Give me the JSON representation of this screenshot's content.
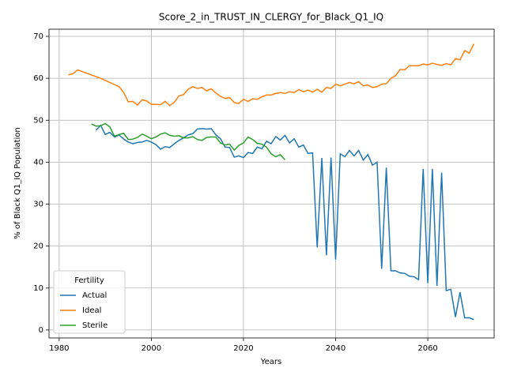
{
  "chart_data": {
    "type": "line",
    "title": "Score_2_in_TRUST_IN_CLERGY_for_Black_Q1_IQ",
    "xlabel": "Years",
    "ylabel": "% of Black Q1_IQ Population",
    "legend_title": "Fertility",
    "legend_loc": "lower left",
    "grid": true,
    "xlim": [
      1977.8,
      2074.4
    ],
    "ylim": [
      -1.9,
      71.7
    ],
    "xticks": [
      1980,
      2000,
      2020,
      2040,
      2060
    ],
    "yticks": [
      0,
      10,
      20,
      30,
      40,
      50,
      60,
      70
    ],
    "x": [
      1982,
      1983,
      1984,
      1985,
      1986,
      1987,
      1988,
      1989,
      1990,
      1991,
      1992,
      1993,
      1994,
      1995,
      1996,
      1997,
      1998,
      1999,
      2000,
      2001,
      2002,
      2003,
      2004,
      2005,
      2006,
      2007,
      2008,
      2009,
      2010,
      2011,
      2012,
      2013,
      2014,
      2015,
      2016,
      2017,
      2018,
      2019,
      2020,
      2021,
      2022,
      2023,
      2024,
      2025,
      2026,
      2027,
      2028,
      2029,
      2030,
      2031,
      2032,
      2033,
      2034,
      2035,
      2036,
      2037,
      2038,
      2039,
      2040,
      2041,
      2042,
      2043,
      2044,
      2045,
      2046,
      2047,
      2048,
      2049,
      2050,
      2051,
      2052,
      2053,
      2054,
      2055,
      2056,
      2057,
      2058,
      2059,
      2060,
      2061,
      2062,
      2063,
      2064,
      2065,
      2066,
      2067,
      2068,
      2069,
      2070
    ],
    "series": [
      {
        "name": "Actual",
        "color": "#1f77b4",
        "values": [
          null,
          null,
          null,
          null,
          null,
          null,
          47.6,
          48.8,
          46.6,
          47.1,
          46,
          46.5,
          45.5,
          44.8,
          44.4,
          44.7,
          44.8,
          45.2,
          44.8,
          44.2,
          43.1,
          43.7,
          43.5,
          44.4,
          45.2,
          45.8,
          46.5,
          46.8,
          47.9,
          48,
          47.9,
          48,
          46.5,
          45.6,
          43.6,
          43.5,
          41.2,
          41.5,
          41.1,
          42.3,
          42.1,
          43.6,
          43.2,
          45,
          44.4,
          46.1,
          45.3,
          46.4,
          44.6,
          45.6,
          43.6,
          44.1,
          42.1,
          42.2,
          19.7,
          41,
          17.8,
          41.1,
          16.8,
          42,
          41.3,
          42.8,
          41.5,
          42.8,
          40.5,
          41.8,
          39.3,
          40,
          14.6,
          38.7,
          14.1,
          14.1,
          13.6,
          13.5,
          12.8,
          12.7,
          12,
          38.4,
          11.2,
          38.4,
          10.5,
          37.5,
          9.4,
          9.7,
          3.1,
          9,
          2.9,
          2.9,
          2.5
        ]
      },
      {
        "name": "Ideal",
        "color": "#ff7f0e",
        "values": [
          60.8,
          61.1,
          62,
          61.6,
          61.2,
          60.8,
          60.4,
          60,
          59.5,
          59,
          58.5,
          58,
          56.6,
          54.4,
          54.5,
          53.6,
          54.9,
          54.6,
          53.8,
          53.8,
          53.7,
          54.5,
          53.5,
          54.3,
          55.8,
          56.1,
          57.4,
          58,
          57.6,
          57.8,
          57,
          57.5,
          56.5,
          55.7,
          55.2,
          55.4,
          54.2,
          54,
          55,
          54.5,
          55.1,
          55,
          55.6,
          56,
          56,
          56.4,
          56.6,
          56.4,
          56.8,
          56.6,
          57.3,
          56.8,
          57.2,
          56.7,
          57.4,
          56.7,
          57.8,
          57.6,
          58.6,
          58.2,
          58.6,
          59,
          58.7,
          59.2,
          58.2,
          58.4,
          57.8,
          58,
          58.6,
          58.7,
          60,
          60.6,
          62.1,
          62,
          63,
          63,
          63,
          63.4,
          63.2,
          63.6,
          63.3,
          63.1,
          63.5,
          63.2,
          64.7,
          64.4,
          66.6,
          66,
          68.2
        ]
      },
      {
        "name": "Sterile",
        "color": "#2ca02c",
        "values": [
          null,
          null,
          null,
          null,
          null,
          49.1,
          48.6,
          48.7,
          49.2,
          48.4,
          46.2,
          46.6,
          46.9,
          45.4,
          45.5,
          45.9,
          46.7,
          46.2,
          45.6,
          46,
          46.7,
          47,
          46.4,
          46.2,
          46.3,
          45.8,
          45.8,
          46.1,
          45.4,
          45.2,
          45.9,
          46,
          46,
          44.6,
          44.1,
          44.3,
          42.9,
          44,
          44.6,
          46,
          45.4,
          44.5,
          44.3,
          43.6,
          42,
          41.3,
          41.8,
          40.6,
          null,
          null,
          null,
          null,
          null,
          null,
          null,
          null,
          null,
          null,
          null,
          null,
          null,
          null,
          null,
          null,
          null,
          null,
          null,
          null,
          null,
          null,
          null,
          null,
          null,
          null,
          null,
          null,
          null,
          null,
          null,
          null,
          null,
          null,
          null,
          null,
          null,
          null,
          null,
          null,
          null
        ]
      }
    ]
  }
}
